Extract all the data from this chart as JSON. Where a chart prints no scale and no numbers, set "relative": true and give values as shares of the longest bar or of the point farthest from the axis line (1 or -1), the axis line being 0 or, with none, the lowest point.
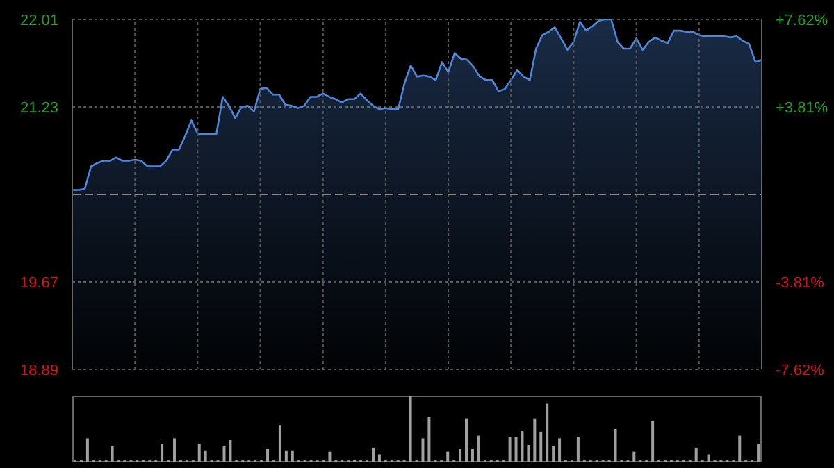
{
  "chart_data": [
    {
      "type": "area",
      "categories": [
        null,
        null,
        null,
        null,
        null,
        null,
        null,
        null,
        null,
        null,
        null,
        null,
        null,
        null,
        null,
        null,
        null,
        null,
        null,
        null,
        null,
        null,
        null,
        null,
        null,
        null,
        null,
        null,
        null,
        null,
        null,
        null,
        null,
        null,
        null,
        null,
        null,
        null,
        null,
        null,
        null,
        null,
        null,
        null,
        null,
        null,
        null,
        null,
        null,
        null,
        null,
        null,
        null,
        null,
        null,
        null,
        null,
        null,
        null,
        null,
        null,
        null,
        null,
        null,
        null,
        null,
        null,
        null,
        null,
        null,
        null,
        null,
        null,
        null,
        null,
        null,
        null,
        null,
        null,
        null,
        null,
        null,
        null,
        null,
        null,
        null,
        null,
        null,
        null,
        null,
        null,
        null,
        null,
        null,
        null,
        null,
        null,
        null,
        null,
        null,
        null,
        null,
        null,
        null,
        null,
        null,
        null,
        null,
        null,
        null,
        null
      ],
      "ylim": [
        18.89,
        22.01
      ],
      "yticks": [
        22.01,
        21.23,
        19.67,
        18.89
      ],
      "y2lim": [
        -7.62,
        7.62
      ],
      "y2ticks": [
        {
          "value": 7.62,
          "label": "+7.62%"
        },
        {
          "value": 3.81,
          "label": "+3.81%"
        },
        {
          "value": -3.81,
          "label": "-3.81%"
        },
        {
          "value": -7.62,
          "label": "-7.62%"
        }
      ],
      "ref_lines": [
        {
          "axis": "y",
          "value": 20.45,
          "line_style": "dashed"
        }
      ],
      "series": [
        {
          "color": "#4f86d9",
          "values": [
            20.49,
            20.49,
            20.5,
            20.7,
            20.73,
            20.75,
            20.75,
            20.78,
            20.75,
            20.75,
            20.76,
            20.75,
            20.7,
            20.7,
            20.7,
            20.75,
            20.85,
            20.85,
            20.97,
            21.11,
            20.99,
            20.99,
            20.99,
            20.99,
            21.32,
            21.24,
            21.13,
            21.23,
            21.24,
            21.19,
            21.39,
            21.4,
            21.34,
            21.34,
            21.25,
            21.24,
            21.22,
            21.24,
            21.32,
            21.32,
            21.35,
            21.32,
            21.3,
            21.27,
            21.3,
            21.3,
            21.35,
            21.29,
            21.24,
            21.21,
            21.22,
            21.21,
            21.21,
            21.44,
            21.6,
            21.5,
            21.51,
            21.5,
            21.47,
            21.63,
            21.54,
            21.71,
            21.66,
            21.65,
            21.59,
            21.5,
            21.47,
            21.47,
            21.37,
            21.39,
            21.47,
            21.56,
            21.5,
            21.47,
            21.75,
            21.87,
            21.9,
            21.94,
            21.84,
            21.74,
            21.81,
            21.99,
            21.91,
            21.95,
            22.0,
            22.01,
            22.01,
            21.81,
            21.75,
            21.75,
            21.84,
            21.74,
            21.81,
            21.85,
            21.82,
            21.8,
            21.91,
            21.91,
            21.9,
            21.9,
            21.87,
            21.86,
            21.86,
            21.86,
            21.86,
            21.85,
            21.86,
            21.82,
            21.79,
            21.63,
            21.65
          ]
        }
      ],
      "grid": true,
      "tick_labels": "y",
      "legend": false
    },
    {
      "type": "bar",
      "relative": true,
      "categories": [
        null,
        null,
        null,
        null,
        null,
        null,
        null,
        null,
        null,
        null,
        null,
        null,
        null,
        null,
        null,
        null,
        null,
        null,
        null,
        null,
        null,
        null,
        null,
        null,
        null,
        null,
        null,
        null,
        null,
        null,
        null,
        null,
        null,
        null,
        null,
        null,
        null,
        null,
        null,
        null,
        null,
        null,
        null,
        null,
        null,
        null,
        null,
        null,
        null,
        null,
        null,
        null,
        null,
        null,
        null,
        null,
        null,
        null,
        null,
        null,
        null,
        null,
        null,
        null,
        null,
        null,
        null,
        null,
        null,
        null,
        null,
        null,
        null,
        null,
        null,
        null,
        null,
        null,
        null,
        null,
        null,
        null,
        null,
        null,
        null,
        null,
        null,
        null,
        null,
        null,
        null,
        null,
        null,
        null,
        null,
        null,
        null,
        null,
        null,
        null,
        null,
        null,
        null,
        null,
        null,
        null,
        null,
        null,
        null,
        null,
        null
      ],
      "color": "#a0a0a0",
      "values": [
        0.03,
        0.03,
        0.36,
        0.03,
        0.03,
        0.03,
        0.24,
        0.03,
        0.03,
        0.03,
        0.03,
        0.03,
        0.03,
        0.03,
        0.28,
        0.03,
        0.36,
        0.03,
        0.03,
        0.03,
        0.28,
        0.18,
        0.03,
        0.03,
        0.24,
        0.34,
        0.03,
        0.03,
        0.03,
        0.03,
        0.03,
        0.2,
        0.03,
        0.56,
        0.18,
        0.18,
        0.03,
        0.03,
        0.03,
        0.03,
        0.03,
        0.16,
        0.03,
        0.03,
        0.03,
        0.03,
        0.03,
        0.03,
        0.22,
        0.12,
        0.03,
        0.03,
        0.03,
        0.03,
        1,
        0.03,
        0.36,
        0.68,
        0.03,
        0.03,
        0.16,
        0.03,
        0.2,
        0.66,
        0.2,
        0.4,
        0.03,
        0.03,
        0.03,
        0.03,
        0.38,
        0.38,
        0.48,
        0.26,
        0.66,
        0.46,
        0.88,
        0.24,
        0.36,
        0.03,
        0.03,
        0.38,
        0.03,
        0.03,
        0.03,
        0.03,
        0.03,
        0.5,
        0.03,
        0.03,
        0.16,
        0.03,
        0.03,
        0.62,
        0.03,
        0.03,
        0.03,
        0.03,
        0.03,
        0.03,
        0.22,
        0.03,
        0.12,
        0.03,
        0.03,
        0.03,
        0.03,
        0.4,
        0.03,
        0.03,
        0.28
      ],
      "tick_labels": false,
      "legend": false
    }
  ]
}
